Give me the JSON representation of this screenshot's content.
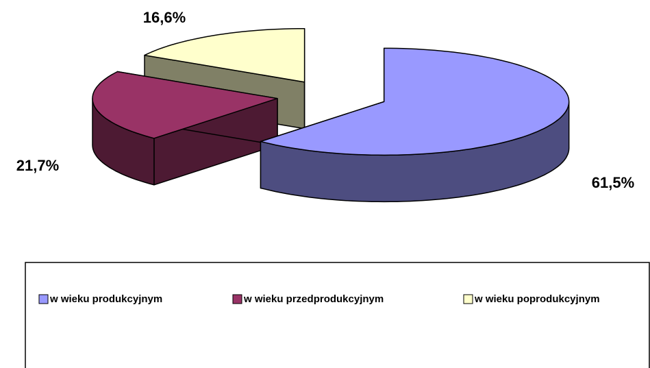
{
  "chart_data": {
    "type": "pie3d",
    "categories": [
      "w wieku produkcyjnym",
      "w wieku przedprodukcyjnym",
      "w wieku poprodukcyjnym"
    ],
    "values": [
      61.5,
      21.7,
      16.6
    ],
    "value_labels": [
      "61,5%",
      "21,7%",
      "16,6%"
    ],
    "colors": [
      "#9999ff",
      "#993366",
      "#ffffcc"
    ],
    "legend": "bottom"
  }
}
